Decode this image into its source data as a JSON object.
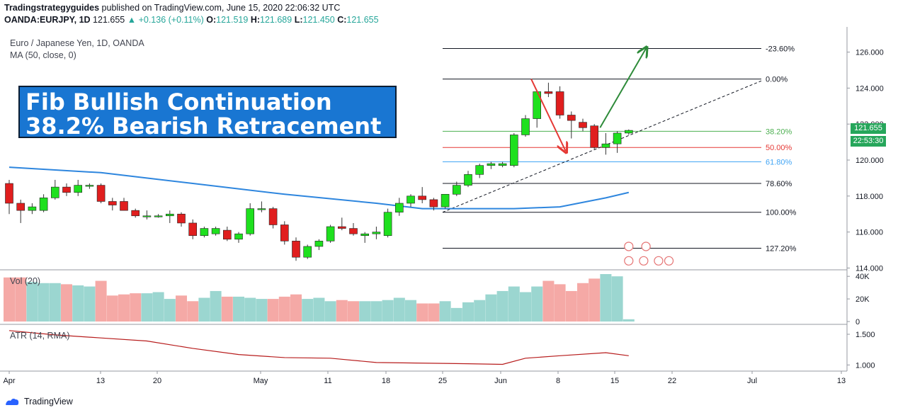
{
  "header": {
    "publisher": "Tradingstrategyguides",
    "published_text": "published on TradingView.com, June 15, 2020 22:06:32 UTC",
    "symbol": "OANDA:EURJPY, 1D",
    "last": "121.655",
    "change": "+0.136 (+0.11%)",
    "o_label": "O:",
    "o": "121.519",
    "h_label": "H:",
    "h": "121.689",
    "l_label": "L:",
    "l": "121.450",
    "c_label": "C:",
    "c": "121.655"
  },
  "legend": {
    "instrument": "Euro / Japanese Yen, 1D, OANDA",
    "ma": "MA (50, close, 0)",
    "vol": "Vol (20)",
    "atr": "ATR (14, RMA)"
  },
  "overlay": {
    "line1": "Fib Bullish Continuation",
    "line2": "38.2% Bearish Retracement"
  },
  "price_tags": {
    "price": "121.655",
    "countdown": "22:53:30"
  },
  "footer": {
    "brand": "TradingView"
  },
  "colors": {
    "bull": "#1ee01e",
    "bear": "#e01e1e",
    "ma": "#2e86de",
    "vol_up": "#9bd6d0",
    "vol_down": "#f5a9a6",
    "atr": "#b71c1c",
    "arrow_up": "#2e8b3a",
    "arrow_down": "#e53935"
  },
  "chart_data": {
    "type": "candlestick",
    "x_ticks": [
      "Apr",
      "13",
      "20",
      "May",
      "11",
      "18",
      "25",
      "Jun",
      "8",
      "15",
      "22",
      "Jul",
      "13"
    ],
    "price_ticks": [
      "126.000",
      "124.000",
      "122.000",
      "120.000",
      "118.000",
      "116.000",
      "114.000"
    ],
    "ylim": [
      113.9,
      127.4
    ],
    "candles": [
      {
        "o": 118.7,
        "h": 118.9,
        "l": 117.0,
        "c": 117.6
      },
      {
        "o": 117.6,
        "h": 117.8,
        "l": 116.5,
        "c": 117.2
      },
      {
        "o": 117.2,
        "h": 117.6,
        "l": 117.0,
        "c": 117.4
      },
      {
        "o": 117.2,
        "h": 118.1,
        "l": 117.1,
        "c": 117.9
      },
      {
        "o": 117.9,
        "h": 118.9,
        "l": 117.8,
        "c": 118.5
      },
      {
        "o": 118.5,
        "h": 118.7,
        "l": 118.0,
        "c": 118.2
      },
      {
        "o": 118.2,
        "h": 118.9,
        "l": 118.0,
        "c": 118.6
      },
      {
        "o": 118.6,
        "h": 118.7,
        "l": 118.4,
        "c": 118.6
      },
      {
        "o": 118.6,
        "h": 118.7,
        "l": 117.6,
        "c": 117.7
      },
      {
        "o": 117.7,
        "h": 117.9,
        "l": 117.2,
        "c": 117.5
      },
      {
        "o": 117.7,
        "h": 117.9,
        "l": 117.2,
        "c": 117.2
      },
      {
        "o": 117.2,
        "h": 117.3,
        "l": 116.8,
        "c": 116.9
      },
      {
        "o": 116.9,
        "h": 117.2,
        "l": 116.7,
        "c": 116.9
      },
      {
        "o": 116.9,
        "h": 117.0,
        "l": 116.8,
        "c": 116.9
      },
      {
        "o": 116.9,
        "h": 117.2,
        "l": 116.5,
        "c": 117.0
      },
      {
        "o": 117.0,
        "h": 117.1,
        "l": 116.3,
        "c": 116.5
      },
      {
        "o": 116.5,
        "h": 116.7,
        "l": 115.6,
        "c": 115.8
      },
      {
        "o": 115.8,
        "h": 116.3,
        "l": 115.7,
        "c": 116.2
      },
      {
        "o": 115.9,
        "h": 116.3,
        "l": 115.8,
        "c": 116.2
      },
      {
        "o": 116.1,
        "h": 116.3,
        "l": 115.5,
        "c": 115.6
      },
      {
        "o": 115.6,
        "h": 116.0,
        "l": 115.4,
        "c": 115.9
      },
      {
        "o": 115.9,
        "h": 117.6,
        "l": 115.8,
        "c": 117.3
      },
      {
        "o": 117.3,
        "h": 117.7,
        "l": 117.1,
        "c": 117.3
      },
      {
        "o": 117.3,
        "h": 117.4,
        "l": 116.2,
        "c": 116.4
      },
      {
        "o": 116.4,
        "h": 116.6,
        "l": 115.3,
        "c": 115.5
      },
      {
        "o": 115.5,
        "h": 115.7,
        "l": 114.4,
        "c": 114.6
      },
      {
        "o": 114.6,
        "h": 115.3,
        "l": 114.5,
        "c": 115.2
      },
      {
        "o": 115.2,
        "h": 115.6,
        "l": 115.0,
        "c": 115.5
      },
      {
        "o": 115.5,
        "h": 116.4,
        "l": 115.4,
        "c": 116.3
      },
      {
        "o": 116.3,
        "h": 116.8,
        "l": 116.1,
        "c": 116.2
      },
      {
        "o": 116.2,
        "h": 116.5,
        "l": 115.8,
        "c": 115.9
      },
      {
        "o": 115.8,
        "h": 116.0,
        "l": 115.4,
        "c": 115.9
      },
      {
        "o": 115.9,
        "h": 116.3,
        "l": 115.6,
        "c": 116.0
      },
      {
        "o": 115.8,
        "h": 117.3,
        "l": 115.7,
        "c": 117.1
      },
      {
        "o": 117.1,
        "h": 117.9,
        "l": 116.9,
        "c": 117.6
      },
      {
        "o": 117.6,
        "h": 118.1,
        "l": 117.4,
        "c": 118.0
      },
      {
        "o": 118.0,
        "h": 118.5,
        "l": 117.6,
        "c": 117.8
      },
      {
        "o": 117.8,
        "h": 117.9,
        "l": 117.2,
        "c": 117.4
      },
      {
        "o": 117.4,
        "h": 118.1,
        "l": 117.3,
        "c": 118.1
      },
      {
        "o": 118.1,
        "h": 118.8,
        "l": 118.0,
        "c": 118.6
      },
      {
        "o": 118.6,
        "h": 119.4,
        "l": 118.5,
        "c": 119.2
      },
      {
        "o": 119.2,
        "h": 119.8,
        "l": 119.0,
        "c": 119.7
      },
      {
        "o": 119.7,
        "h": 119.9,
        "l": 119.5,
        "c": 119.8
      },
      {
        "o": 119.7,
        "h": 119.9,
        "l": 119.6,
        "c": 119.8
      },
      {
        "o": 119.7,
        "h": 121.5,
        "l": 119.6,
        "c": 121.4
      },
      {
        "o": 121.4,
        "h": 122.5,
        "l": 121.3,
        "c": 122.3
      },
      {
        "o": 122.3,
        "h": 123.9,
        "l": 121.8,
        "c": 123.8
      },
      {
        "o": 123.8,
        "h": 124.3,
        "l": 123.5,
        "c": 123.7
      },
      {
        "o": 123.8,
        "h": 124.1,
        "l": 122.3,
        "c": 122.5
      },
      {
        "o": 122.5,
        "h": 122.7,
        "l": 121.2,
        "c": 122.2
      },
      {
        "o": 122.1,
        "h": 122.3,
        "l": 121.6,
        "c": 121.8
      },
      {
        "o": 121.9,
        "h": 122.0,
        "l": 120.6,
        "c": 120.7
      },
      {
        "o": 120.7,
        "h": 121.5,
        "l": 120.3,
        "c": 120.9
      },
      {
        "o": 120.9,
        "h": 121.6,
        "l": 120.4,
        "c": 121.5
      },
      {
        "o": 121.5,
        "h": 121.7,
        "l": 121.4,
        "c": 121.65
      }
    ],
    "ma50": [
      [
        0,
        119.6
      ],
      [
        8,
        119.3
      ],
      [
        16,
        118.7
      ],
      [
        24,
        118.1
      ],
      [
        32,
        117.6
      ],
      [
        36,
        117.3
      ],
      [
        40,
        117.3
      ],
      [
        44,
        117.3
      ],
      [
        48,
        117.4
      ],
      [
        52,
        117.9
      ],
      [
        54,
        118.2
      ]
    ],
    "fib_levels": [
      {
        "label": "-23.60%",
        "price": 126.2,
        "color": "#131722"
      },
      {
        "label": "0.00%",
        "price": 124.5,
        "color": "#131722"
      },
      {
        "label": "38.20%",
        "price": 121.6,
        "color": "#4caf50"
      },
      {
        "label": "50.00%",
        "price": 120.7,
        "color": "#e53935"
      },
      {
        "label": "61.80%",
        "price": 119.9,
        "color": "#42a5f5"
      },
      {
        "label": "78.60%",
        "price": 118.7,
        "color": "#131722"
      },
      {
        "label": "100.00%",
        "price": 117.1,
        "color": "#131722"
      },
      {
        "label": "127.20%",
        "price": 115.1,
        "color": "#131722"
      }
    ],
    "volume_ticks": [
      "40K",
      "20K",
      "0"
    ],
    "volume_max": 42000,
    "volume": [
      39000,
      39000,
      35000,
      34000,
      34000,
      33000,
      32000,
      31000,
      36000,
      23000,
      24000,
      25000,
      25000,
      26000,
      20000,
      23000,
      18000,
      21000,
      27000,
      22000,
      22000,
      21000,
      20000,
      20000,
      22000,
      24000,
      20000,
      21000,
      18000,
      19000,
      18000,
      18000,
      18000,
      19000,
      21000,
      19000,
      16000,
      16000,
      18000,
      12000,
      17000,
      19000,
      24000,
      27000,
      31000,
      26000,
      31000,
      36000,
      33000,
      27000,
      34000,
      38000,
      42000,
      40000,
      2000
    ],
    "atr_ticks": [
      "1.500",
      "1.000"
    ],
    "atr_ylim": [
      0.9,
      1.65
    ],
    "atr": [
      [
        0,
        1.56
      ],
      [
        4,
        1.49
      ],
      [
        8,
        1.44
      ],
      [
        12,
        1.39
      ],
      [
        16,
        1.27
      ],
      [
        20,
        1.17
      ],
      [
        24,
        1.12
      ],
      [
        28,
        1.11
      ],
      [
        32,
        1.04
      ],
      [
        36,
        1.03
      ],
      [
        40,
        1.02
      ],
      [
        43,
        1.01
      ],
      [
        45,
        1.11
      ],
      [
        48,
        1.15
      ],
      [
        52,
        1.2
      ],
      [
        54,
        1.15
      ]
    ]
  }
}
